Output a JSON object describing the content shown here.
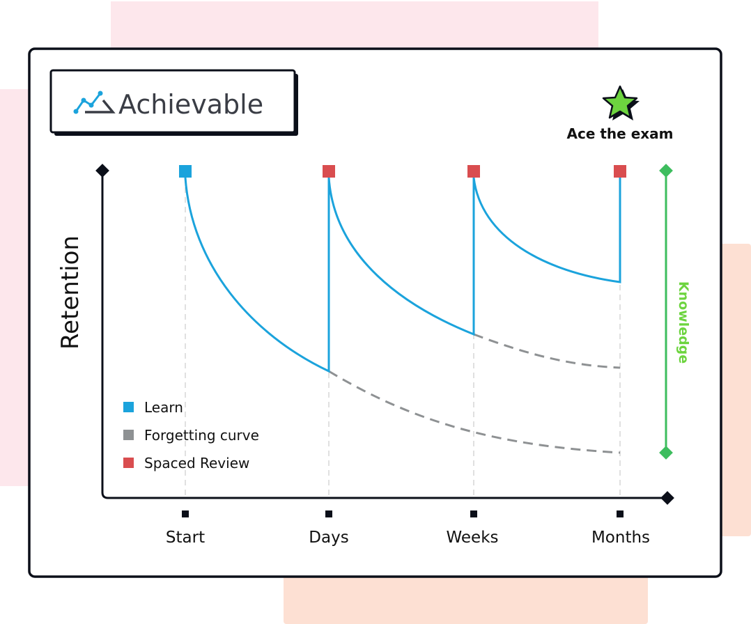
{
  "brand": {
    "name": "Achievable"
  },
  "goal": {
    "label": "Ace the exam",
    "icon": "star-icon"
  },
  "axes": {
    "y_label": "Retention",
    "x_ticks": [
      "Start",
      "Days",
      "Weeks",
      "Months"
    ]
  },
  "knowledge_label": "Knowledge",
  "legend": [
    {
      "label": "Learn",
      "color": "#1ba3dc"
    },
    {
      "label": "Forgetting curve",
      "color": "#8e9193"
    },
    {
      "label": "Spaced Review",
      "color": "#d94d4f"
    }
  ],
  "colors": {
    "learn": "#1ba3dc",
    "review": "#d94d4f",
    "forgetting": "#8e9193",
    "knowledge": "#3dbd5e",
    "star": "#6dd43f"
  }
}
